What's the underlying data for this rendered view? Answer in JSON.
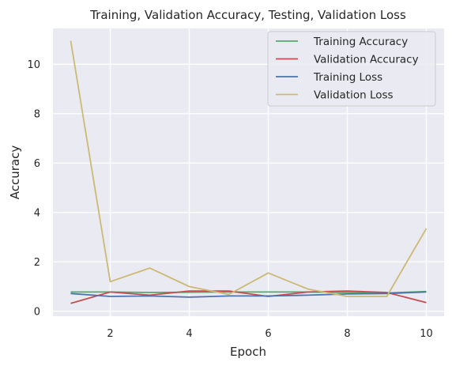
{
  "chart_data": {
    "type": "line",
    "title": "Training, Validation Accuracy, Testing, Validation Loss",
    "xlabel": "Epoch",
    "ylabel": "Accuracy",
    "xlim": [
      0.55,
      10.45
    ],
    "ylim": [
      -0.2,
      11.45
    ],
    "xticks": [
      2,
      4,
      6,
      8,
      10
    ],
    "yticks": [
      0,
      2,
      4,
      6,
      8,
      10
    ],
    "grid": true,
    "legend_position": "top-right",
    "x": [
      1,
      2,
      3,
      4,
      5,
      6,
      7,
      8,
      9,
      10
    ],
    "series": [
      {
        "name": "Training Accuracy",
        "color": "#55a868",
        "values": [
          0.78,
          0.78,
          0.76,
          0.77,
          0.78,
          0.78,
          0.78,
          0.76,
          0.74,
          0.8
        ]
      },
      {
        "name": "Validation Accuracy",
        "color": "#c44e52",
        "values": [
          0.32,
          0.78,
          0.65,
          0.82,
          0.82,
          0.6,
          0.78,
          0.82,
          0.76,
          0.35
        ]
      },
      {
        "name": "Training Loss",
        "color": "#4c72b0",
        "values": [
          0.72,
          0.6,
          0.62,
          0.57,
          0.62,
          0.62,
          0.65,
          0.7,
          0.72,
          0.78
        ]
      },
      {
        "name": "Validation Loss",
        "color": "#ccb974",
        "values": [
          10.95,
          1.2,
          1.75,
          1.0,
          0.68,
          1.55,
          0.9,
          0.6,
          0.6,
          3.35
        ]
      }
    ]
  }
}
